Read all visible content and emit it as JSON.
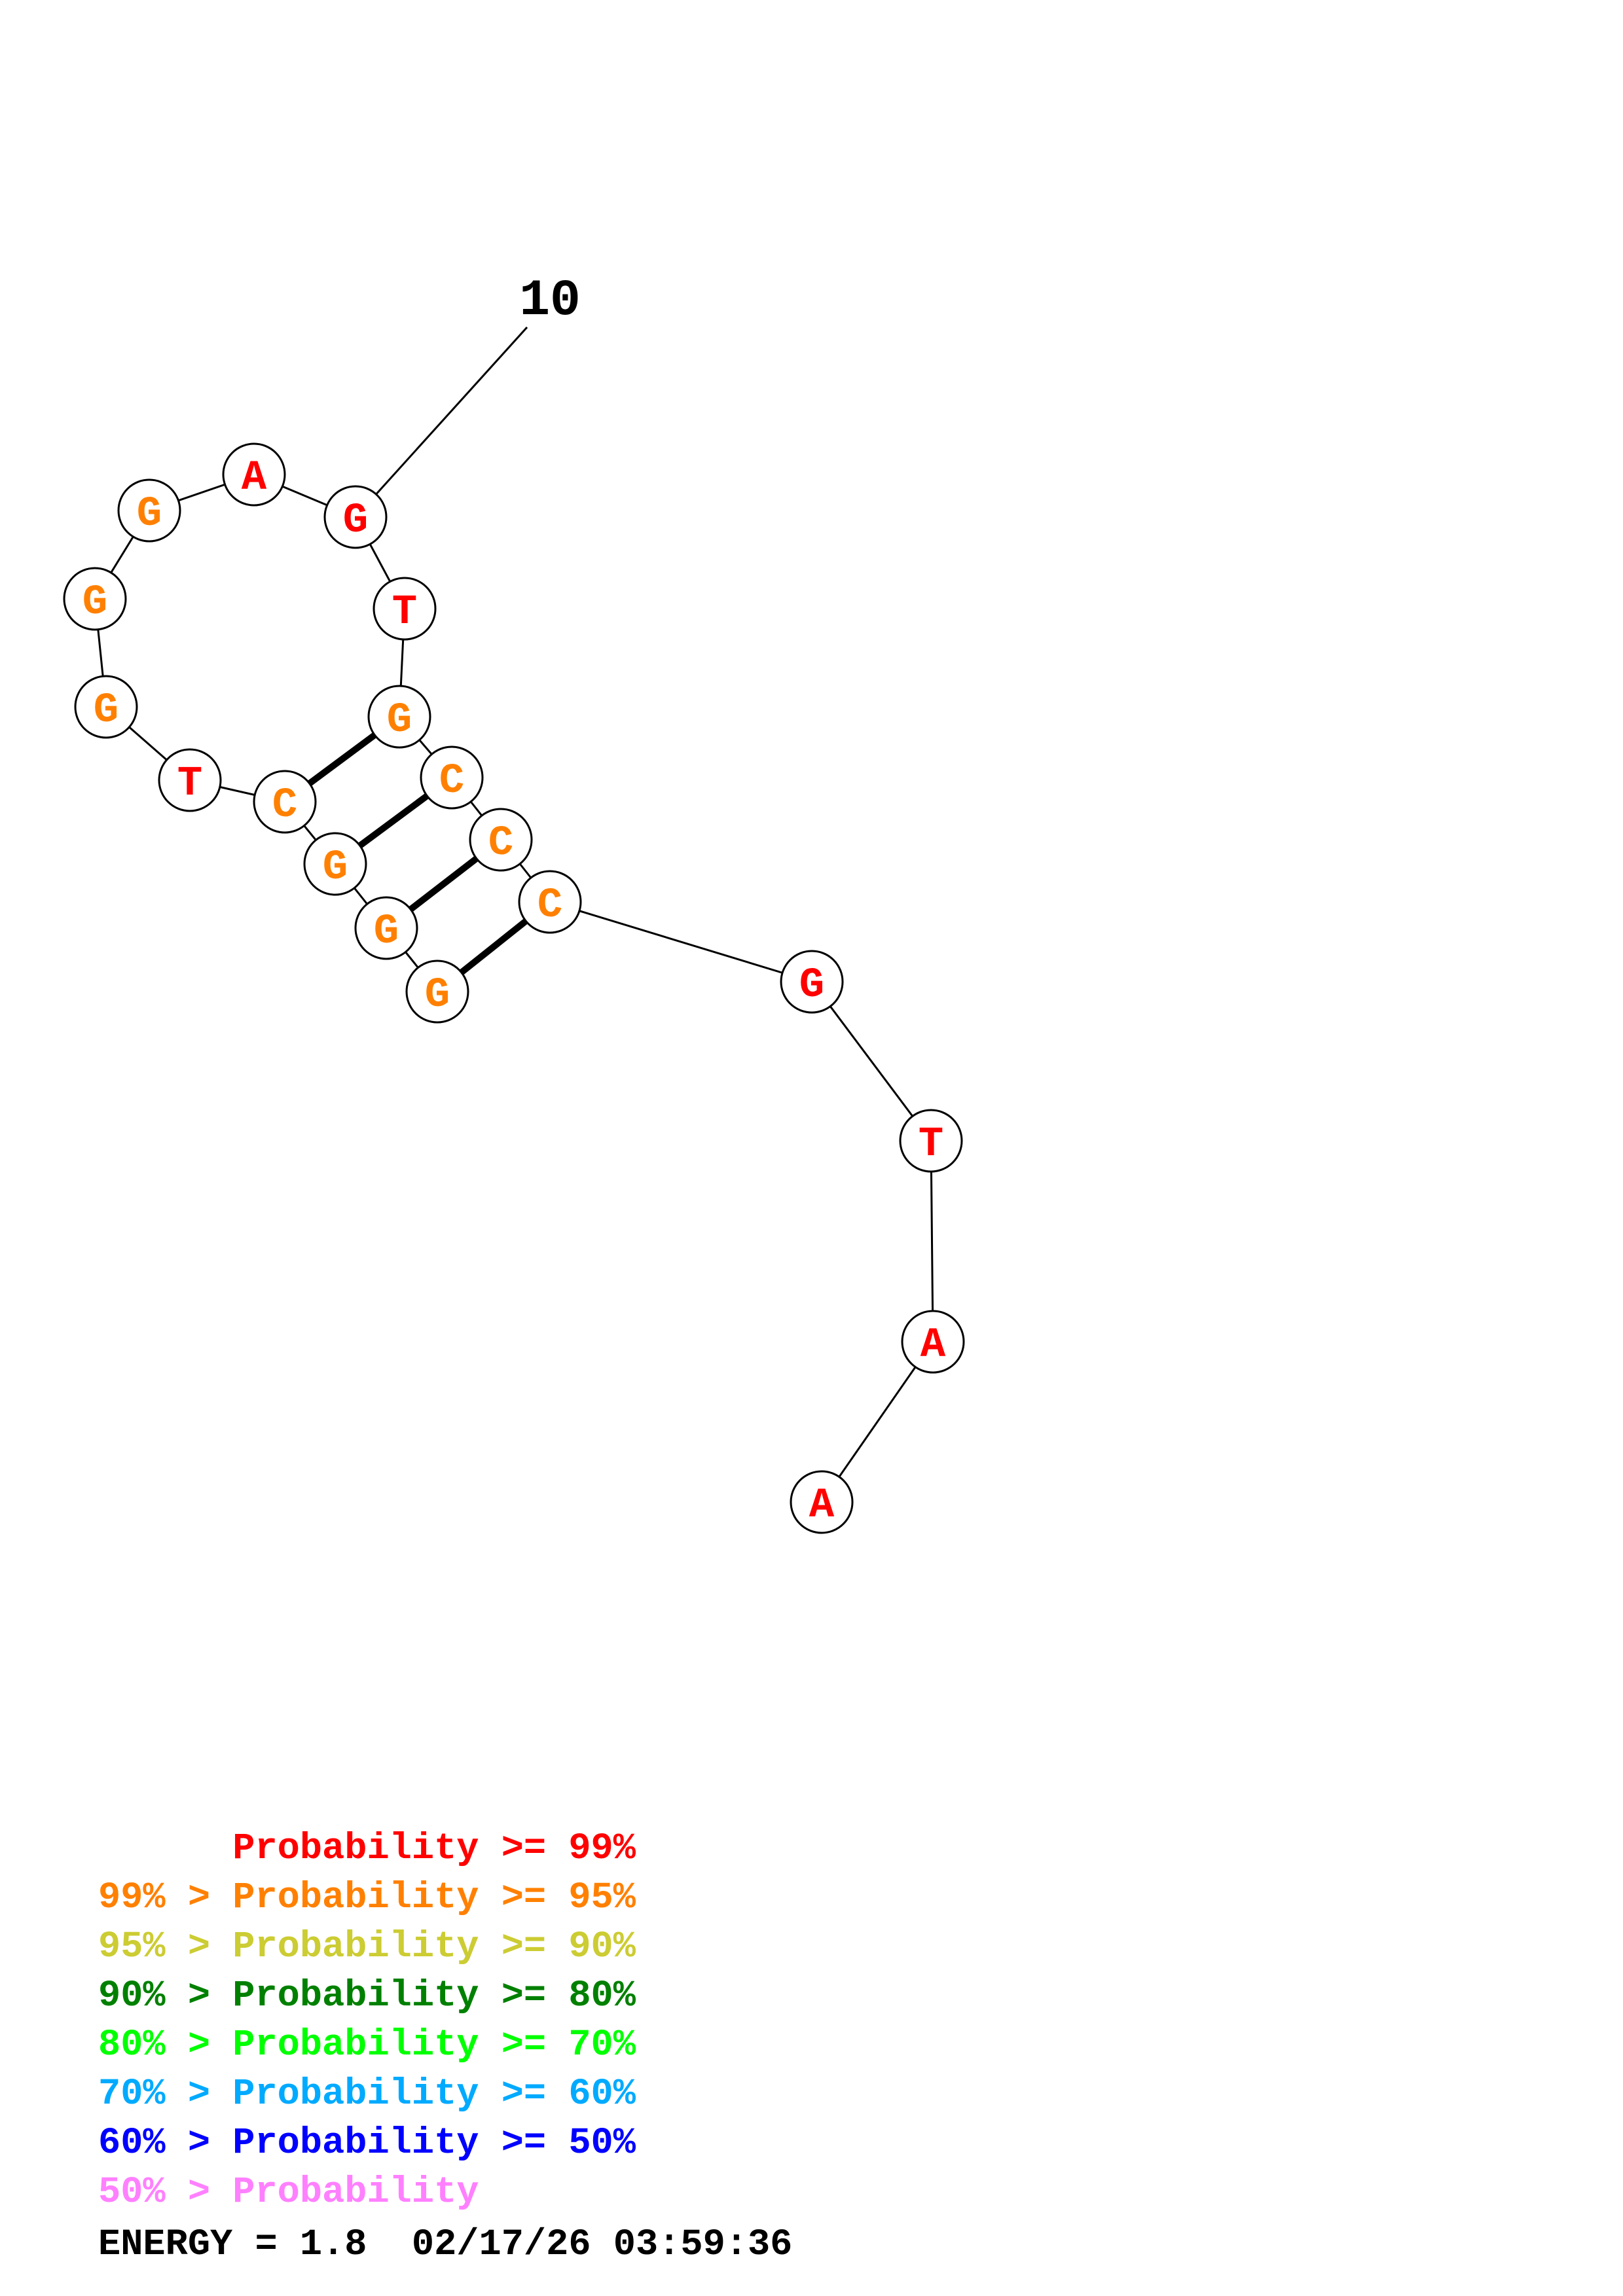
{
  "structure": {
    "index_label": "10",
    "nucleotides": [
      {
        "base": "A",
        "color": "#ff0000"
      },
      {
        "base": "A",
        "color": "#ff0000"
      },
      {
        "base": "T",
        "color": "#ff0000"
      },
      {
        "base": "G",
        "color": "#ff0000"
      },
      {
        "base": "C",
        "color": "#ff8000"
      },
      {
        "base": "C",
        "color": "#ff8000"
      },
      {
        "base": "C",
        "color": "#ff8000"
      },
      {
        "base": "G",
        "color": "#ff8000"
      },
      {
        "base": "T",
        "color": "#ff0000"
      },
      {
        "base": "G",
        "color": "#ff0000"
      },
      {
        "base": "A",
        "color": "#ff0000"
      },
      {
        "base": "G",
        "color": "#ff8000"
      },
      {
        "base": "G",
        "color": "#ff8000"
      },
      {
        "base": "G",
        "color": "#ff8000"
      },
      {
        "base": "T",
        "color": "#ff0000"
      },
      {
        "base": "C",
        "color": "#ff8000"
      },
      {
        "base": "G",
        "color": "#ff8000"
      },
      {
        "base": "G",
        "color": "#ff8000"
      },
      {
        "base": "G",
        "color": "#ff8000"
      }
    ],
    "base_pairs": [
      [
        8,
        16
      ],
      [
        7,
        17
      ],
      [
        6,
        18
      ],
      [
        5,
        19
      ]
    ]
  },
  "legend": [
    {
      "prefix": "",
      "text": "Probability >= 99%",
      "color": "#ff0000"
    },
    {
      "prefix": "99% > ",
      "text": "Probability >= 95%",
      "color": "#ff8000"
    },
    {
      "prefix": "95% > ",
      "text": "Probability >= 90%",
      "color": "#cccc33"
    },
    {
      "prefix": "90% > ",
      "text": "Probability >= 80%",
      "color": "#008000"
    },
    {
      "prefix": "80% > ",
      "text": "Probability >= 70%",
      "color": "#00ff00"
    },
    {
      "prefix": "70% > ",
      "text": "Probability >= 60%",
      "color": "#00aaff"
    },
    {
      "prefix": "60% > ",
      "text": "Probability >= 50%",
      "color": "#0000ff"
    },
    {
      "prefix": "50% > ",
      "text": "Probability",
      "color": "#ff80ff"
    }
  ],
  "footer": {
    "energy": "ENERGY = 1.8",
    "timestamp": "02/17/26 03:59:36"
  }
}
